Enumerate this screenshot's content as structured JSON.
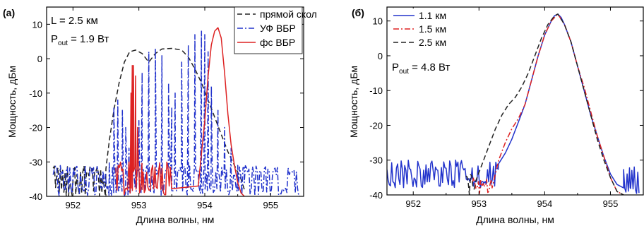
{
  "chart_data": [
    {
      "panel": "(a)",
      "type": "line",
      "xlabel": "Длина волны, нм",
      "ylabel": "Мощность, дБм",
      "xlim": [
        951.6,
        955.5
      ],
      "ylim": [
        -40,
        15
      ],
      "xticks": [
        952,
        953,
        954,
        955
      ],
      "yticks": [
        -40,
        -30,
        -20,
        -10,
        0,
        10
      ],
      "grid": false,
      "legend_position": "top-right",
      "annotations": [
        {
          "main": "L = 2.5 км"
        },
        {
          "main": "P",
          "sub": "out",
          "rest": " = 1.9 Вт"
        }
      ],
      "series": [
        {
          "name": "прямой скол",
          "color": "#222222",
          "style": "dash",
          "noise": {
            "x_range": [
              951.7,
              952.5
            ],
            "floor": -40,
            "peak": -33
          },
          "x": [
            952.5,
            952.55,
            952.62,
            952.7,
            952.78,
            952.86,
            952.95,
            953.05,
            953.15,
            953.25,
            953.35,
            953.5,
            953.65,
            953.75,
            953.85,
            953.95,
            954.05,
            954.15,
            954.25,
            954.35,
            954.45,
            954.55,
            954.6
          ],
          "y": [
            -32,
            -24,
            -15,
            -7,
            -1,
            2,
            2.5,
            1.5,
            -1,
            1.5,
            2.8,
            3,
            2.5,
            0.5,
            -3,
            -7,
            -12,
            -17,
            -22,
            -27,
            -31,
            -35,
            -38
          ]
        },
        {
          "name": "УФ ВБР",
          "color": "#2233cc",
          "style": "dashdot",
          "noise": {
            "x_range": [
              951.7,
              955.45
            ],
            "floor": -40,
            "peak": -33
          },
          "x": [
            952.55,
            952.62,
            952.68,
            952.75,
            952.8,
            952.85,
            952.9,
            952.95,
            953.0,
            953.05,
            953.15,
            953.25,
            953.35,
            953.45,
            953.5,
            953.55,
            953.65,
            953.75,
            953.85,
            953.95,
            954.0,
            954.05,
            954.1,
            954.2,
            954.3,
            954.4,
            954.5,
            954.6
          ],
          "y": [
            -30,
            -14,
            -12,
            -15,
            -20,
            -26,
            -29,
            -30,
            -18,
            -4,
            2,
            3,
            1,
            -7,
            -14,
            -10,
            -1,
            4,
            7,
            8,
            7,
            2,
            -8,
            -15,
            -20,
            -26,
            -31,
            -36
          ]
        },
        {
          "name": "фс ВБР",
          "color": "#dd2222",
          "style": "solid",
          "noise": {
            "x_range": [
              952.65,
              953.5
            ],
            "floor": -40,
            "peak": -32
          },
          "x": [
            952.85,
            952.88,
            952.9,
            952.92,
            952.95,
            952.98,
            953.0,
            953.05,
            953.9,
            954.0,
            954.05,
            954.1,
            954.15,
            954.2,
            954.25,
            954.3,
            954.35,
            954.4,
            954.45,
            954.5,
            954.55,
            954.6
          ],
          "y": [
            -30,
            -10,
            -2,
            -2,
            -5,
            -20,
            -32,
            -38,
            -37,
            -18,
            -5,
            4,
            8,
            9,
            6,
            -4,
            -16,
            -25,
            -31,
            -36,
            -39,
            -40
          ]
        }
      ]
    },
    {
      "panel": "(б)",
      "type": "line",
      "xlabel": "Длина волны, нм",
      "ylabel": "Мощность, дБм",
      "xlim": [
        951.6,
        955.5
      ],
      "ylim": [
        -40,
        14
      ],
      "xticks": [
        952,
        953,
        954,
        955
      ],
      "yticks": [
        -40,
        -30,
        -20,
        -10,
        0,
        10
      ],
      "grid": false,
      "legend_position": "top-left",
      "annotations": [
        {
          "main": "P",
          "sub": "out",
          "rest": " = 4.8 Вт"
        }
      ],
      "series": [
        {
          "name": "1.1 км",
          "color": "#2233cc",
          "style": "solid",
          "noise": {
            "x_range": [
              951.6,
              953.3
            ],
            "floor": -38,
            "peak": -32
          },
          "x": [
            953.3,
            953.4,
            953.5,
            953.6,
            953.7,
            953.8,
            953.9,
            954.0,
            954.1,
            954.15,
            954.2,
            954.25,
            954.3,
            954.4,
            954.5,
            954.6,
            954.7,
            954.8,
            954.9,
            955.0,
            955.1,
            955.2,
            955.3
          ],
          "y": [
            -31,
            -28,
            -24,
            -19,
            -14,
            -7,
            0,
            6,
            10,
            11.5,
            12,
            11,
            9,
            4,
            -3,
            -10,
            -17,
            -23,
            -29,
            -34,
            -37,
            -38,
            -38
          ],
          "tail_noise": {
            "x_range": [
              955.2,
              955.45
            ],
            "floor": -40,
            "peak": -33
          }
        },
        {
          "name": "1.5 км",
          "color": "#dd2222",
          "style": "dashdot",
          "noise": {
            "x_range": [
              952.9,
              953.2
            ],
            "floor": -40,
            "peak": -37
          },
          "x": [
            953.2,
            953.3,
            953.4,
            953.5,
            953.6,
            953.7,
            953.8,
            953.9,
            954.0,
            954.1,
            954.2,
            954.3,
            954.4,
            954.5,
            954.6,
            954.7,
            954.8,
            954.9,
            955.0,
            955.1,
            955.2
          ],
          "y": [
            -38,
            -30,
            -25,
            -21,
            -18,
            -14,
            -7,
            0,
            6,
            10,
            12,
            9,
            4,
            -3,
            -9,
            -16,
            -23,
            -29,
            -35,
            -39,
            -40
          ]
        },
        {
          "name": "2.5 км",
          "color": "#222222",
          "style": "dash",
          "noise": {
            "x_range": [
              952.8,
              952.95
            ],
            "floor": -40,
            "peak": -36
          },
          "x": [
            952.95,
            953.05,
            953.15,
            953.25,
            953.35,
            953.45,
            953.55,
            953.65,
            953.75,
            953.85,
            953.95,
            954.05,
            954.15,
            954.2,
            954.3,
            954.4,
            954.5,
            954.6,
            954.7,
            954.8,
            954.9,
            955.0,
            955.1,
            955.2
          ],
          "y": [
            -36,
            -31,
            -26,
            -21,
            -17,
            -14,
            -12,
            -9,
            -5,
            0,
            5,
            9,
            11.5,
            12,
            9,
            4,
            -3,
            -10,
            -17,
            -24,
            -30,
            -35,
            -39,
            -40
          ]
        }
      ]
    }
  ]
}
